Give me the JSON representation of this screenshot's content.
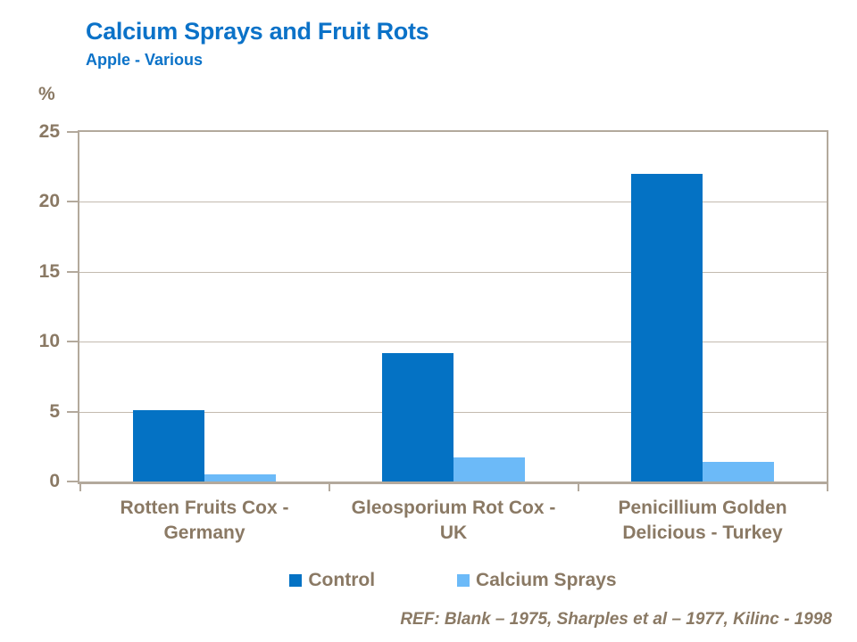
{
  "page": {
    "title": "Calcium Sprays and Fruit Rots",
    "subtitle": "Apple - Various",
    "reference": "REF: Blank – 1975, Sharples et al – 1977, Kilinc - 1998"
  },
  "colors": {
    "title_blue": "#0B72C8",
    "text_brown": "#8A7964",
    "axis_tan": "#B3A99C",
    "gridline": "#C3BAAF",
    "control_bar": "#0472C4",
    "calcium_sprays_bar": "#6CBAF8"
  },
  "chart_data": {
    "type": "bar",
    "title": "Calcium Sprays and Fruit Rots",
    "subtitle": "Apple - Various",
    "xlabel": "",
    "ylabel": "%",
    "ylim": [
      0,
      25
    ],
    "yticks": [
      0,
      5,
      10,
      15,
      20,
      25
    ],
    "grid": true,
    "legend_position": "bottom",
    "categories": [
      "Rotten Fruits Cox - Germany",
      "Gleosporium Rot Cox - UK",
      "Penicillium Golden Delicious - Turkey"
    ],
    "category_label_lines": [
      [
        "Rotten Fruits Cox -",
        "Germany"
      ],
      [
        "Gleosporium Rot Cox -",
        "UK"
      ],
      [
        "Penicillium Golden",
        "Delicious - Turkey"
      ]
    ],
    "series": [
      {
        "name": "Control",
        "color": "#0472C4",
        "values": [
          5.1,
          9.2,
          22
        ]
      },
      {
        "name": "Calcium Sprays",
        "color": "#6CBAF8",
        "values": [
          0.5,
          1.7,
          1.4
        ]
      }
    ]
  }
}
